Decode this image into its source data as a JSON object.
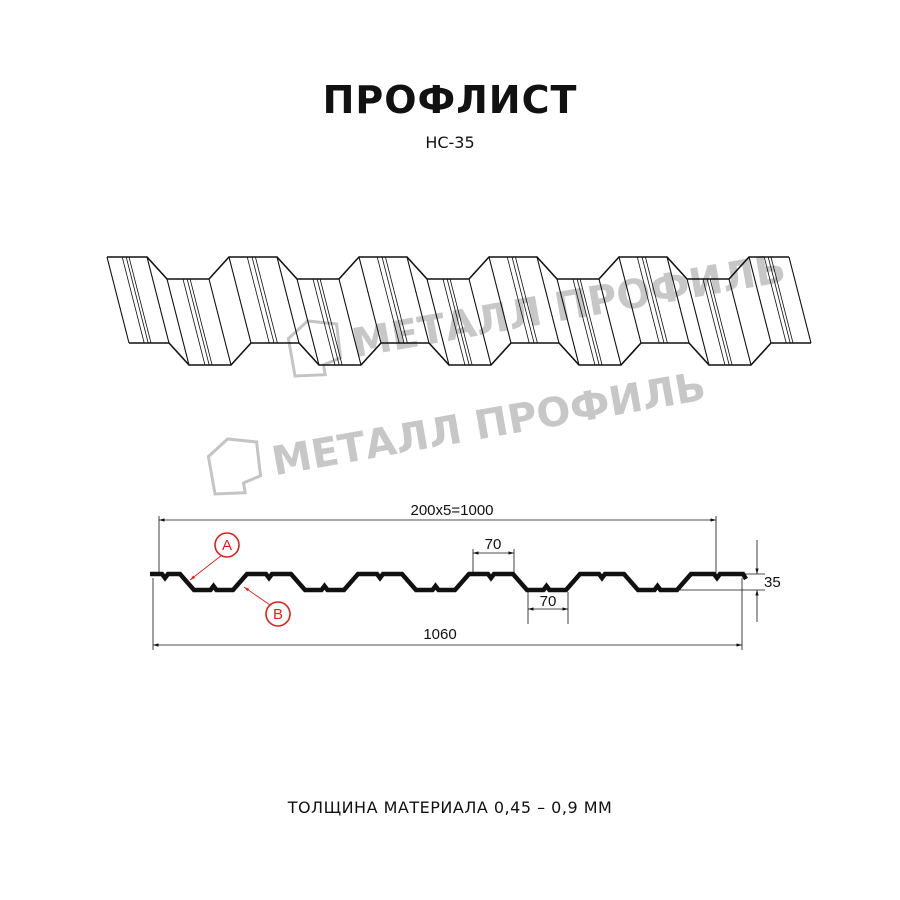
{
  "title": "ПРОФЛИСТ",
  "subtitle": "НС-35",
  "watermark": "МЕТАЛЛ ПРОФИЛЬ",
  "dimensions": {
    "pitch_total": "200x5=1000",
    "full_width": "1060",
    "top_flat": "70",
    "bottom_flat": "70",
    "height": "35"
  },
  "markers": {
    "a": "A",
    "b": "B"
  },
  "footer": "ТОЛЩИНА МАТЕРИАЛА 0,45 – 0,9 ММ",
  "colors": {
    "line": "#111111",
    "marker": "#e0201c",
    "watermark": "#b5b5b5"
  }
}
